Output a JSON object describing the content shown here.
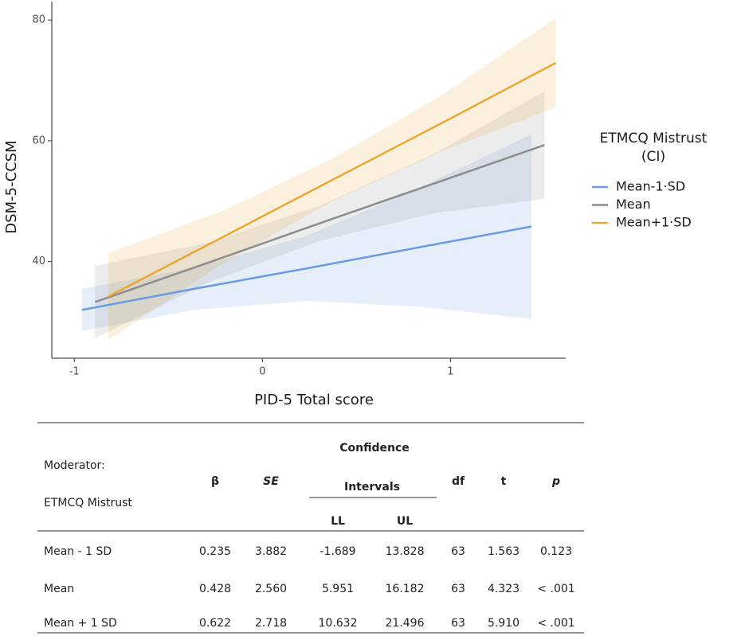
{
  "chart_data": {
    "type": "line",
    "x_label": "PID-5 Total score",
    "y_label": "DSM-5-CCSM",
    "legend_title": "ETMCQ Mistrust (CI)",
    "xlim": [
      -1.12,
      1.6
    ],
    "ylim": [
      24,
      82
    ],
    "xticks": [
      -1,
      0,
      1
    ],
    "yticks": [
      40,
      60,
      80
    ],
    "series": [
      {
        "name": "Mean-1·SD",
        "color": "#6a9be0",
        "x": [
          -0.96,
          -0.36,
          0.24,
          0.84,
          1.43
        ],
        "values": [
          32.0,
          35.5,
          38.9,
          42.4,
          45.8
        ],
        "lower": [
          28.5,
          32,
          33.5,
          32.5,
          30.5
        ],
        "upper": [
          35.5,
          39,
          44.3,
          52.3,
          61.1
        ]
      },
      {
        "name": "Mean",
        "color": "#8c8c8c",
        "x": [
          -0.89,
          -0.29,
          0.31,
          0.91,
          1.5
        ],
        "values": [
          33.3,
          39.8,
          46.4,
          52.9,
          59.3
        ],
        "lower": [
          27.3,
          36.5,
          43.5,
          48,
          50.4
        ],
        "upper": [
          39.3,
          43.1,
          49.3,
          57.8,
          68.2
        ]
      },
      {
        "name": "Mean+1·SD",
        "color": "#e8a838",
        "x": [
          -0.82,
          -0.22,
          0.37,
          0.97,
          1.56
        ],
        "values": [
          34.2,
          43.9,
          53.5,
          63.2,
          72.9
        ],
        "lower": [
          27,
          39.5,
          50,
          58.5,
          65.5
        ],
        "upper": [
          41.4,
          48.3,
          57,
          67.9,
          80.3
        ]
      }
    ]
  },
  "table": {
    "header": {
      "moderator": "Moderator:",
      "moderator_name": "ETMCQ Mistrust",
      "beta": "β",
      "se": "SE",
      "ci_top": "Confidence",
      "ci_bottom": "Intervals",
      "ll": "LL",
      "ul": "UL",
      "df": "df",
      "t": "t",
      "p": "p"
    },
    "rows": [
      [
        "Mean - 1 SD",
        "0.235",
        "3.882",
        "-1.689",
        "13.828",
        "63",
        "1.563",
        "0.123"
      ],
      [
        "Mean",
        "0.428",
        "2.560",
        "5.951",
        "16.182",
        "63",
        "4.323",
        "< .001"
      ],
      [
        "Mean + 1 SD",
        "0.622",
        "2.718",
        "10.632",
        "21.496",
        "63",
        "5.910",
        "< .001"
      ]
    ]
  }
}
